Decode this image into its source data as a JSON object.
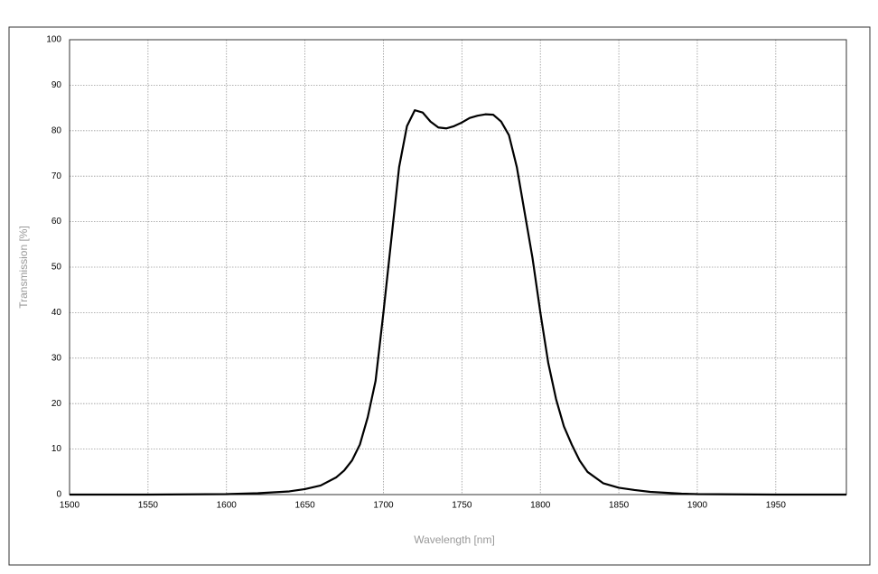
{
  "chart_data": {
    "type": "line",
    "x_label": "Wavelength [nm]",
    "y_label": "Transmission [%]",
    "series": [
      {
        "color": "#000000",
        "x": [
          1500,
          1550,
          1600,
          1620,
          1640,
          1650,
          1660,
          1670,
          1675,
          1680,
          1685,
          1690,
          1695,
          1700,
          1705,
          1710,
          1715,
          1720,
          1725,
          1730,
          1735,
          1740,
          1745,
          1750,
          1755,
          1760,
          1765,
          1770,
          1775,
          1780,
          1785,
          1790,
          1795,
          1800,
          1805,
          1810,
          1815,
          1820,
          1825,
          1830,
          1840,
          1850,
          1860,
          1870,
          1880,
          1890,
          1900,
          1950,
          1995
        ],
        "values": [
          0,
          0,
          0.1,
          0.3,
          0.7,
          1.2,
          2.0,
          3.8,
          5.3,
          7.5,
          11,
          17,
          25,
          40,
          56,
          72,
          81,
          84.5,
          84,
          82,
          80.7,
          80.5,
          81,
          81.8,
          82.8,
          83.3,
          83.6,
          83.5,
          82,
          79,
          72,
          62,
          52,
          40,
          29,
          21,
          15,
          11,
          7.5,
          5,
          2.5,
          1.5,
          1.0,
          0.6,
          0.4,
          0.2,
          0.1,
          0,
          0
        ]
      }
    ],
    "xlim": [
      1500,
      1995
    ],
    "ylim": [
      0,
      100
    ],
    "xticks": [
      1500,
      1550,
      1600,
      1650,
      1700,
      1750,
      1800,
      1850,
      1900,
      1950
    ],
    "yticks": [
      0,
      10,
      20,
      30,
      40,
      50,
      60,
      70,
      80,
      90,
      100
    ],
    "grid": true
  }
}
